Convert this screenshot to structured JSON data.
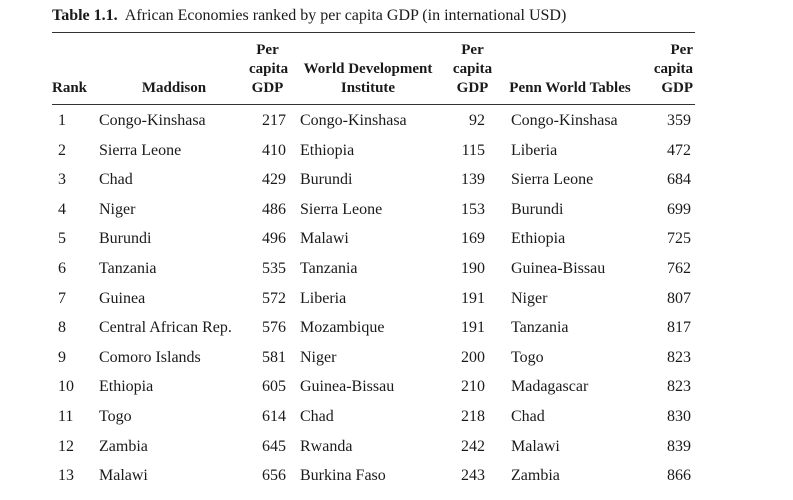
{
  "caption": {
    "number": "Table 1.1.",
    "title": "African Economies ranked by per capita GDP (in international USD)"
  },
  "headers": {
    "rank": "Rank",
    "maddison": "Maddison",
    "gdp1": [
      "Per",
      "capita",
      "GDP"
    ],
    "wdi": [
      "World Development",
      "Institute"
    ],
    "gdp2": [
      "Per",
      "capita",
      "GDP"
    ],
    "pwt": "Penn World Tables",
    "gdp3": [
      "Per",
      "capita",
      "GDP"
    ]
  },
  "rows": [
    {
      "rank": "1",
      "maddison": "Congo-Kinshasa",
      "gdp1": "217",
      "wdi": "Congo-Kinshasa",
      "gdp2": "92",
      "pwt": "Congo-Kinshasa",
      "gdp3": "359"
    },
    {
      "rank": "2",
      "maddison": "Sierra Leone",
      "gdp1": "410",
      "wdi": "Ethiopia",
      "gdp2": "115",
      "pwt": "Liberia",
      "gdp3": "472"
    },
    {
      "rank": "3",
      "maddison": "Chad",
      "gdp1": "429",
      "wdi": "Burundi",
      "gdp2": "139",
      "pwt": "Sierra Leone",
      "gdp3": "684"
    },
    {
      "rank": "4",
      "maddison": "Niger",
      "gdp1": "486",
      "wdi": "Sierra Leone",
      "gdp2": "153",
      "pwt": "Burundi",
      "gdp3": "699"
    },
    {
      "rank": "5",
      "maddison": "Burundi",
      "gdp1": "496",
      "wdi": "Malawi",
      "gdp2": "169",
      "pwt": "Ethiopia",
      "gdp3": "725"
    },
    {
      "rank": "6",
      "maddison": "Tanzania",
      "gdp1": "535",
      "wdi": "Tanzania",
      "gdp2": "190",
      "pwt": "Guinea-Bissau",
      "gdp3": "762"
    },
    {
      "rank": "7",
      "maddison": "Guinea",
      "gdp1": "572",
      "wdi": "Liberia",
      "gdp2": "191",
      "pwt": "Niger",
      "gdp3": "807"
    },
    {
      "rank": "8",
      "maddison": "Central African Rep.",
      "gdp1": "576",
      "wdi": "Mozambique",
      "gdp2": "191",
      "pwt": "Tanzania",
      "gdp3": "817"
    },
    {
      "rank": "9",
      "maddison": "Comoro Islands",
      "gdp1": "581",
      "wdi": "Niger",
      "gdp2": "200",
      "pwt": "Togo",
      "gdp3": "823"
    },
    {
      "rank": "10",
      "maddison": "Ethiopia",
      "gdp1": "605",
      "wdi": "Guinea-Bissau",
      "gdp2": "210",
      "pwt": "Madagascar",
      "gdp3": "823"
    },
    {
      "rank": "11",
      "maddison": "Togo",
      "gdp1": "614",
      "wdi": "Chad",
      "gdp2": "218",
      "pwt": "Chad",
      "gdp3": "830"
    },
    {
      "rank": "12",
      "maddison": "Zambia",
      "gdp1": "645",
      "wdi": "Rwanda",
      "gdp2": "242",
      "pwt": "Malawi",
      "gdp3": "839"
    },
    {
      "rank": "13",
      "maddison": "Malawi",
      "gdp1": "656",
      "wdi": "Burkina Faso",
      "gdp2": "243",
      "pwt": "Zambia",
      "gdp3": "866"
    }
  ]
}
